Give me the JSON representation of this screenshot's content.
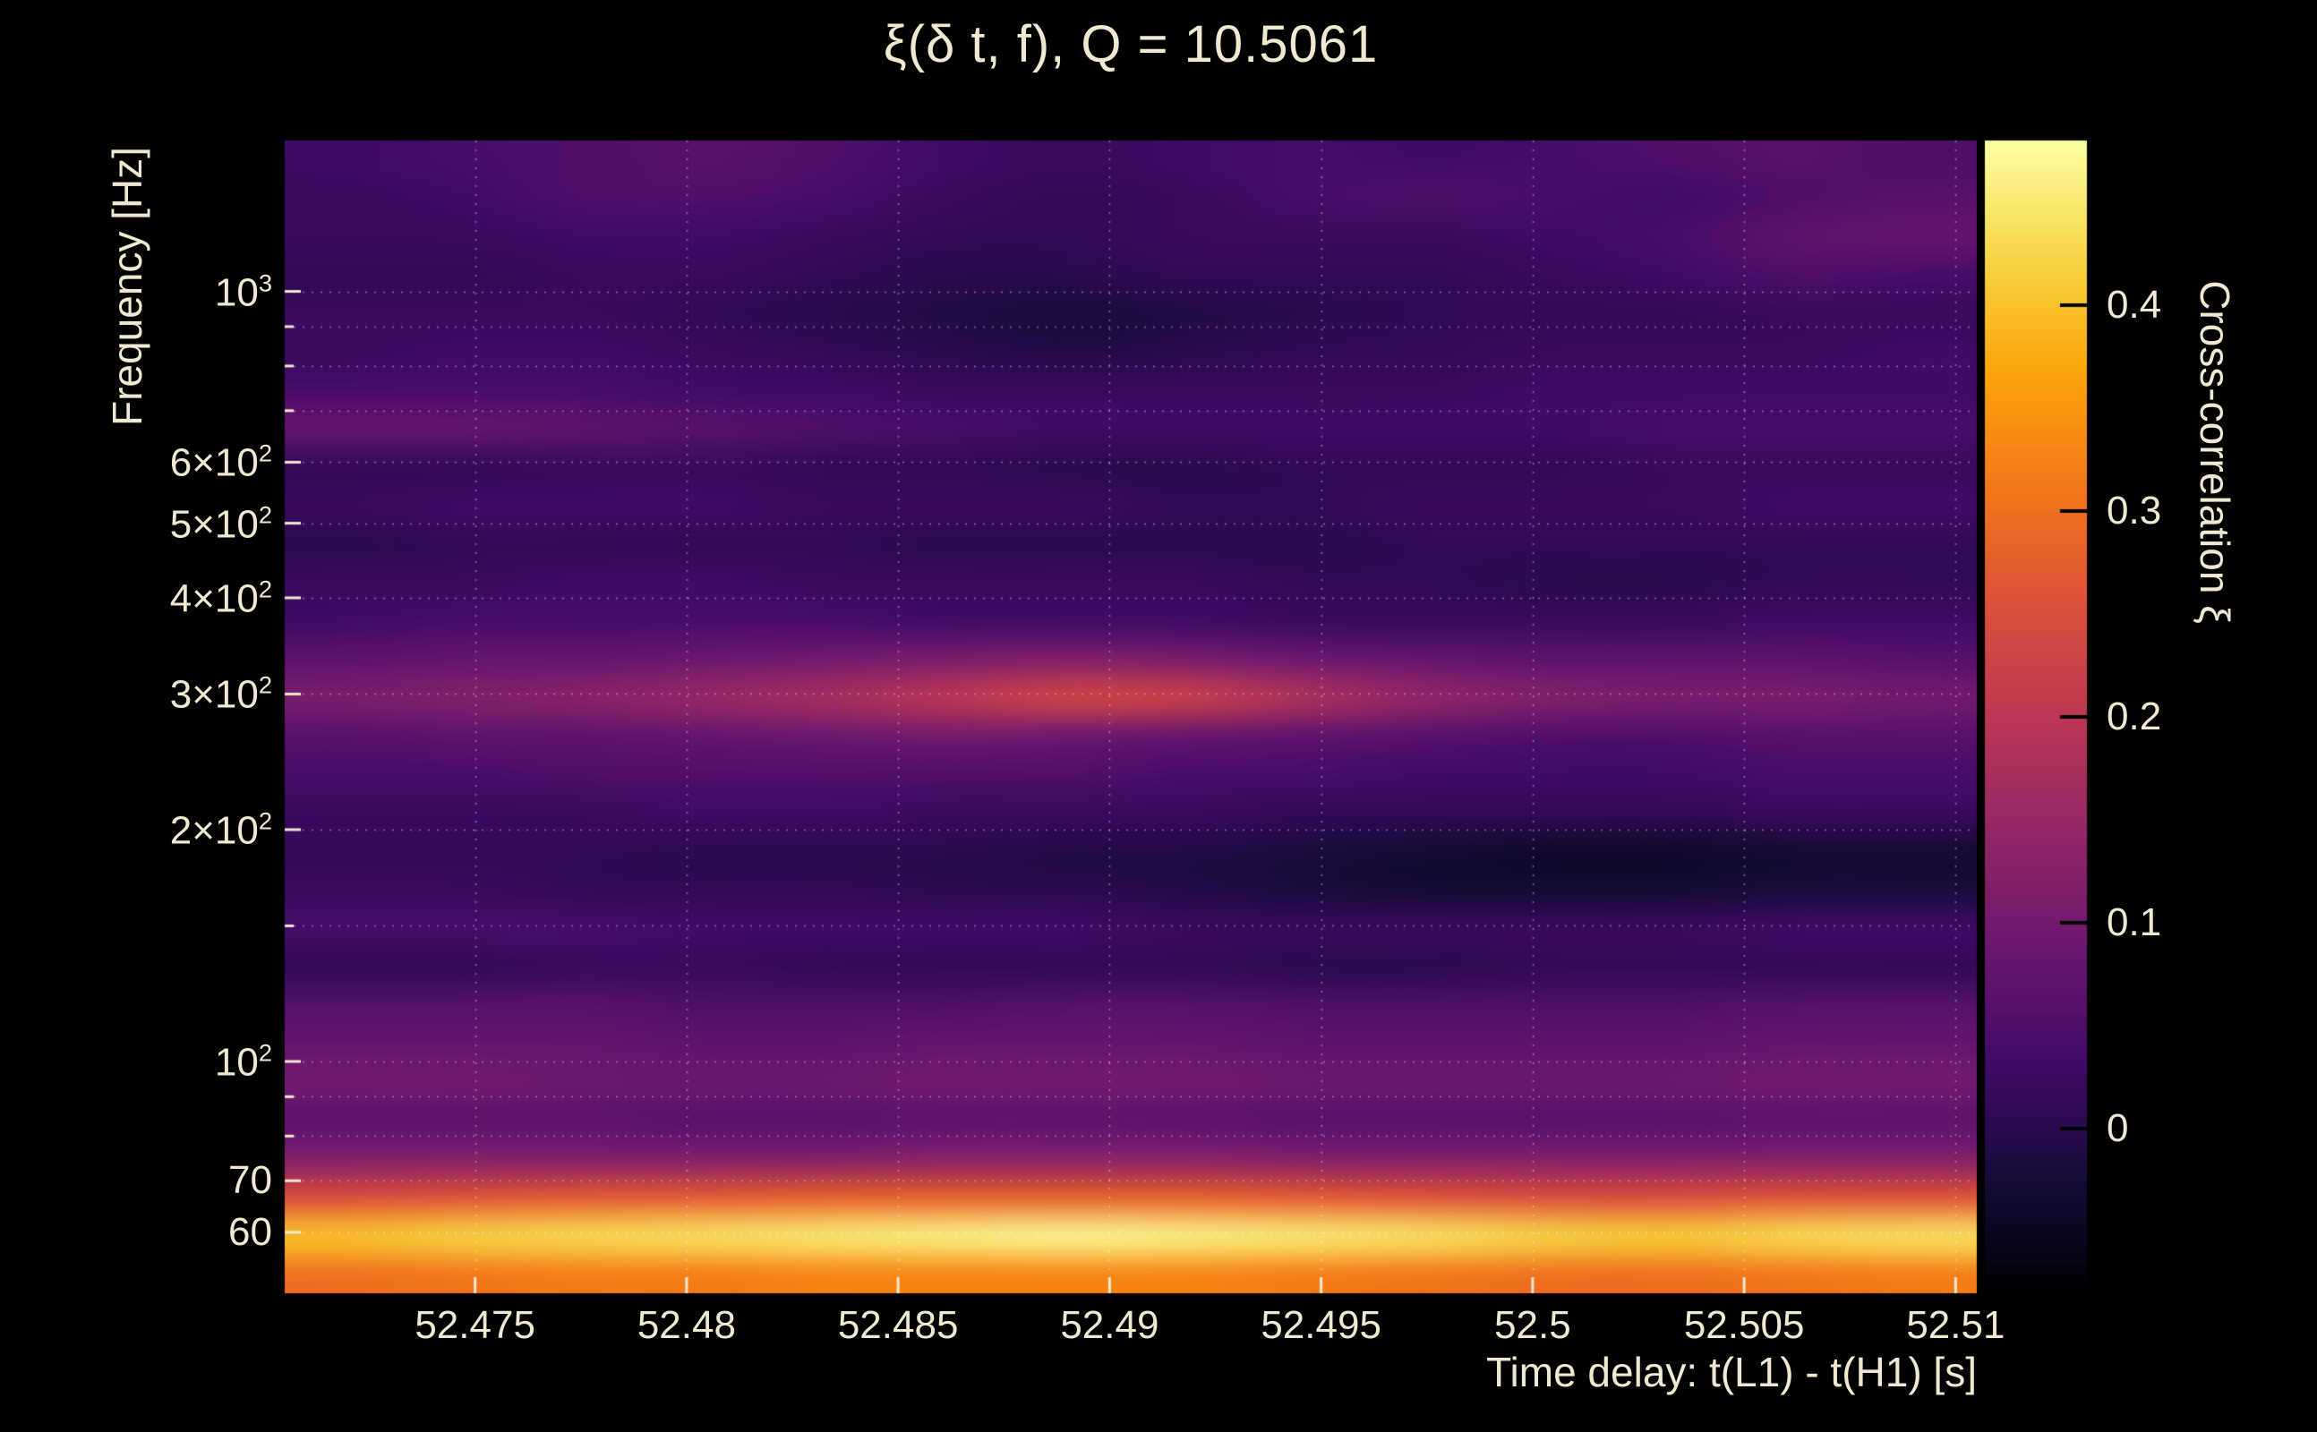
{
  "colors": {
    "background": "#000000",
    "text": "#f0e9d2",
    "grid": "rgba(255,255,255,0.42)",
    "colorbar_tick": "#000000"
  },
  "chart_data": {
    "type": "heatmap",
    "title": "ξ(δ t, f), Q = 10.5061",
    "xlabel": "Time delay: t(L1) - t(H1) [s]",
    "ylabel": "Frequency [Hz]",
    "colorbar_label": "Cross-correlation ξ",
    "x_range": [
      52.4705,
      52.5105
    ],
    "y_range_hz": [
      50,
      1570
    ],
    "y_scale": "log",
    "value_range": [
      -0.08,
      0.48
    ],
    "grid": true,
    "legend_position": "right-colorbar",
    "colormap": "inferno",
    "colormap_stops": [
      [
        0.0,
        0,
        0,
        4
      ],
      [
        0.1,
        22,
        11,
        57
      ],
      [
        0.2,
        66,
        10,
        104
      ],
      [
        0.3,
        106,
        23,
        110
      ],
      [
        0.4,
        147,
        38,
        103
      ],
      [
        0.5,
        188,
        55,
        84
      ],
      [
        0.6,
        221,
        81,
        58
      ],
      [
        0.7,
        243,
        120,
        25
      ],
      [
        0.8,
        252,
        165,
        10
      ],
      [
        0.9,
        246,
        215,
        70
      ],
      [
        1.0,
        252,
        255,
        164
      ]
    ],
    "x_ticks": [
      {
        "value": 52.475,
        "label": "52.475"
      },
      {
        "value": 52.48,
        "label": "52.48"
      },
      {
        "value": 52.485,
        "label": "52.485"
      },
      {
        "value": 52.49,
        "label": "52.49"
      },
      {
        "value": 52.495,
        "label": "52.495"
      },
      {
        "value": 52.5,
        "label": "52.5"
      },
      {
        "value": 52.505,
        "label": "52.505"
      },
      {
        "value": 52.51,
        "label": "52.51"
      }
    ],
    "y_ticks": [
      {
        "value": 1000,
        "base": "10",
        "exp": "3"
      },
      {
        "value": 600,
        "base": "6×10",
        "exp": "2"
      },
      {
        "value": 500,
        "base": "5×10",
        "exp": "2"
      },
      {
        "value": 400,
        "base": "4×10",
        "exp": "2"
      },
      {
        "value": 300,
        "base": "3×10",
        "exp": "2"
      },
      {
        "value": 200,
        "base": "2×10",
        "exp": "2"
      },
      {
        "value": 100,
        "base": "10",
        "exp": "2"
      },
      {
        "value": 70,
        "base": "70"
      },
      {
        "value": 60,
        "base": "60"
      }
    ],
    "y_minor_ticks": [
      80,
      90,
      150,
      700,
      800,
      900
    ],
    "colorbar_ticks": [
      {
        "value": 0.4,
        "label": "0.4"
      },
      {
        "value": 0.3,
        "label": "0.3"
      },
      {
        "value": 0.2,
        "label": "0.2"
      },
      {
        "value": 0.1,
        "label": "0.1"
      },
      {
        "value": 0.0,
        "label": "0"
      }
    ],
    "x_column_centers": [
      52.472,
      52.4748,
      52.4777,
      52.4805,
      52.4834,
      52.4863,
      52.4891,
      52.492,
      52.4948,
      52.4977,
      52.5006,
      52.5034,
      52.5063,
      52.5091
    ],
    "row_freqs_hz": [
      1484,
      1325,
      1182,
      1055,
      941,
      840,
      750,
      669,
      597,
      533,
      475,
      424,
      379,
      338,
      302,
      269,
      240,
      214,
      191,
      171,
      152,
      136,
      121,
      108,
      97,
      86,
      77,
      69,
      61,
      55
    ],
    "rows": [
      [
        0.03,
        0.04,
        0.05,
        0.06,
        0.05,
        0.03,
        0.02,
        0.03,
        0.04,
        0.03,
        0.04,
        0.05,
        0.06,
        0.05
      ],
      [
        0.02,
        0.03,
        0.05,
        0.05,
        0.04,
        0.02,
        0.01,
        0.02,
        0.04,
        0.05,
        0.04,
        0.03,
        0.05,
        0.06
      ],
      [
        0.02,
        0.02,
        0.03,
        0.03,
        0.02,
        0.01,
        0.01,
        0.02,
        0.02,
        0.02,
        0.03,
        0.04,
        0.07,
        0.08
      ],
      [
        0.01,
        0.01,
        0.02,
        0.02,
        0.01,
        0.0,
        0.0,
        0.01,
        0.01,
        0.01,
        0.02,
        0.03,
        0.05,
        0.04
      ],
      [
        0.02,
        0.02,
        0.02,
        0.01,
        0.0,
        -0.01,
        -0.02,
        -0.01,
        0.0,
        0.01,
        0.01,
        0.01,
        0.02,
        0.02
      ],
      [
        0.02,
        0.03,
        0.03,
        0.02,
        0.01,
        0.0,
        -0.01,
        0.0,
        0.01,
        0.01,
        0.02,
        0.02,
        0.02,
        0.03
      ],
      [
        0.04,
        0.04,
        0.04,
        0.03,
        0.03,
        0.02,
        0.02,
        0.02,
        0.02,
        0.02,
        0.03,
        0.03,
        0.03,
        0.03
      ],
      [
        0.08,
        0.08,
        0.07,
        0.06,
        0.05,
        0.04,
        0.03,
        0.03,
        0.03,
        0.03,
        0.03,
        0.04,
        0.04,
        0.04
      ],
      [
        0.01,
        0.01,
        0.02,
        0.02,
        0.01,
        0.01,
        0.0,
        0.0,
        0.01,
        0.01,
        0.01,
        0.02,
        0.02,
        0.02
      ],
      [
        0.02,
        0.03,
        0.03,
        0.03,
        0.02,
        0.02,
        0.02,
        0.01,
        0.01,
        0.02,
        0.02,
        0.02,
        0.03,
        0.03
      ],
      [
        0.0,
        0.01,
        0.01,
        0.01,
        0.01,
        0.0,
        0.0,
        0.0,
        0.0,
        0.01,
        0.01,
        0.01,
        0.01,
        0.01
      ],
      [
        0.02,
        0.02,
        0.03,
        0.03,
        0.02,
        0.02,
        0.02,
        0.02,
        0.01,
        0.01,
        0.0,
        0.0,
        0.01,
        0.01
      ],
      [
        0.03,
        0.04,
        0.04,
        0.04,
        0.04,
        0.03,
        0.03,
        0.03,
        0.02,
        0.02,
        0.02,
        0.02,
        0.03,
        0.03
      ],
      [
        0.07,
        0.08,
        0.08,
        0.09,
        0.1,
        0.11,
        0.12,
        0.11,
        0.09,
        0.08,
        0.07,
        0.07,
        0.07,
        0.06
      ],
      [
        0.11,
        0.12,
        0.13,
        0.15,
        0.17,
        0.2,
        0.23,
        0.22,
        0.18,
        0.14,
        0.12,
        0.11,
        0.11,
        0.1
      ],
      [
        0.06,
        0.07,
        0.07,
        0.08,
        0.09,
        0.1,
        0.09,
        0.08,
        0.07,
        0.06,
        0.05,
        0.05,
        0.06,
        0.06
      ],
      [
        0.04,
        0.04,
        0.05,
        0.05,
        0.05,
        0.05,
        0.05,
        0.04,
        0.04,
        0.03,
        0.03,
        0.03,
        0.04,
        0.04
      ],
      [
        0.02,
        0.02,
        0.02,
        0.03,
        0.03,
        0.02,
        0.02,
        0.02,
        0.01,
        0.01,
        0.01,
        0.01,
        0.02,
        0.02
      ],
      [
        0.01,
        0.01,
        0.01,
        0.0,
        0.0,
        0.0,
        -0.01,
        -0.01,
        -0.02,
        -0.03,
        -0.04,
        -0.04,
        -0.03,
        -0.03
      ],
      [
        0.02,
        0.02,
        0.01,
        0.01,
        0.01,
        0.0,
        0.0,
        -0.01,
        -0.02,
        -0.03,
        -0.03,
        -0.03,
        -0.02,
        -0.02
      ],
      [
        0.04,
        0.04,
        0.04,
        0.03,
        0.03,
        0.03,
        0.03,
        0.02,
        0.02,
        0.02,
        0.02,
        0.02,
        0.03,
        0.03
      ],
      [
        0.01,
        0.01,
        0.02,
        0.02,
        0.01,
        0.01,
        0.01,
        0.01,
        0.0,
        0.0,
        0.01,
        0.01,
        0.01,
        0.01
      ],
      [
        0.06,
        0.06,
        0.06,
        0.05,
        0.05,
        0.05,
        0.06,
        0.06,
        0.05,
        0.05,
        0.05,
        0.05,
        0.06,
        0.06
      ],
      [
        0.08,
        0.08,
        0.08,
        0.07,
        0.07,
        0.08,
        0.08,
        0.08,
        0.07,
        0.07,
        0.07,
        0.07,
        0.08,
        0.08
      ],
      [
        0.1,
        0.1,
        0.09,
        0.09,
        0.09,
        0.1,
        0.1,
        0.1,
        0.09,
        0.09,
        0.09,
        0.09,
        0.1,
        0.1
      ],
      [
        0.07,
        0.07,
        0.07,
        0.06,
        0.06,
        0.07,
        0.07,
        0.07,
        0.06,
        0.06,
        0.06,
        0.06,
        0.07,
        0.07
      ],
      [
        0.12,
        0.12,
        0.12,
        0.12,
        0.12,
        0.13,
        0.13,
        0.13,
        0.12,
        0.12,
        0.12,
        0.12,
        0.12,
        0.12
      ],
      [
        0.25,
        0.26,
        0.27,
        0.27,
        0.28,
        0.28,
        0.28,
        0.28,
        0.27,
        0.26,
        0.25,
        0.25,
        0.26,
        0.26
      ],
      [
        0.4,
        0.42,
        0.43,
        0.44,
        0.45,
        0.46,
        0.47,
        0.46,
        0.45,
        0.44,
        0.42,
        0.41,
        0.43,
        0.44
      ],
      [
        0.3,
        0.31,
        0.32,
        0.32,
        0.33,
        0.33,
        0.33,
        0.33,
        0.32,
        0.31,
        0.3,
        0.3,
        0.31,
        0.32
      ]
    ]
  }
}
